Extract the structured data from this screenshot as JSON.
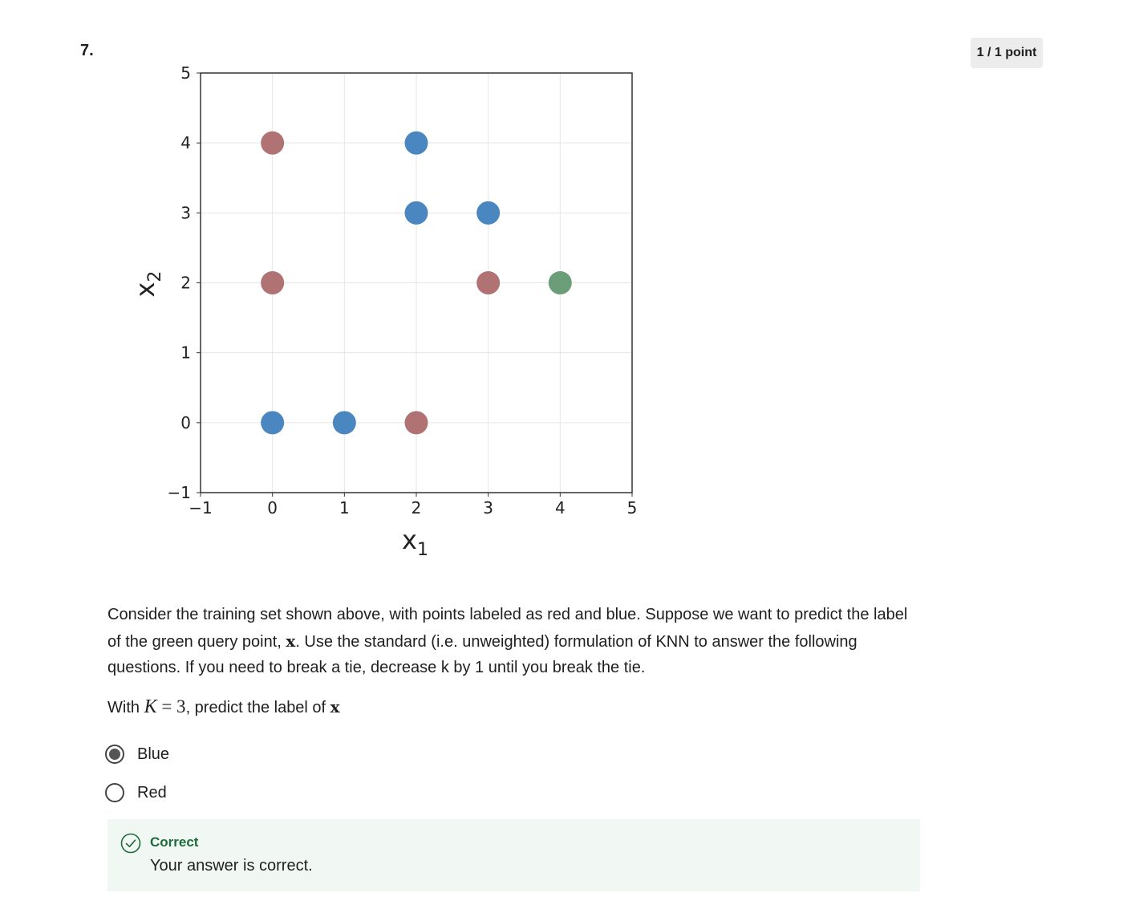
{
  "question": {
    "number": "7.",
    "score": "1 / 1 point",
    "prompt_part1": "Consider the training set shown above, with points labeled as red and blue. Suppose we want to predict the label of the green query point, ",
    "prompt_x": "x",
    "prompt_part2": ". Use the standard (i.e. unweighted) formulation of KNN to answer the following questions. If you need to break a tie, decrease k by 1 until you break the tie.",
    "ask_prefix": "With ",
    "ask_K": "K",
    "ask_eq": " = 3",
    "ask_middle": ", predict the label of ",
    "ask_x": "x"
  },
  "options": [
    {
      "label": "Blue",
      "selected": true
    },
    {
      "label": "Red",
      "selected": false
    }
  ],
  "feedback": {
    "title": "Correct",
    "message": "Your answer is correct."
  },
  "colors": {
    "red": "#b07272",
    "blue": "#4a86c0",
    "green": "#6b9e78",
    "correct_text": "#1d6b3a",
    "feedback_bg": "#f1f8f3"
  },
  "chart_data": {
    "type": "scatter",
    "xlabel": "x1",
    "ylabel": "x2",
    "xlim": [
      -1,
      5
    ],
    "ylim": [
      -1,
      5
    ],
    "xticks": [
      "−1",
      "0",
      "1",
      "2",
      "3",
      "4",
      "5"
    ],
    "yticks": [
      "−1",
      "0",
      "1",
      "2",
      "3",
      "4",
      "5"
    ],
    "grid": true,
    "series": [
      {
        "color": "#b07272",
        "points": [
          [
            0,
            4
          ],
          [
            0,
            2
          ],
          [
            3,
            2
          ],
          [
            2,
            0
          ]
        ]
      },
      {
        "color": "#4a86c0",
        "points": [
          [
            2,
            4
          ],
          [
            2,
            3
          ],
          [
            3,
            3
          ],
          [
            0,
            0
          ],
          [
            1,
            0
          ]
        ]
      },
      {
        "color": "#6b9e78",
        "points": [
          [
            4,
            2
          ]
        ]
      }
    ]
  }
}
